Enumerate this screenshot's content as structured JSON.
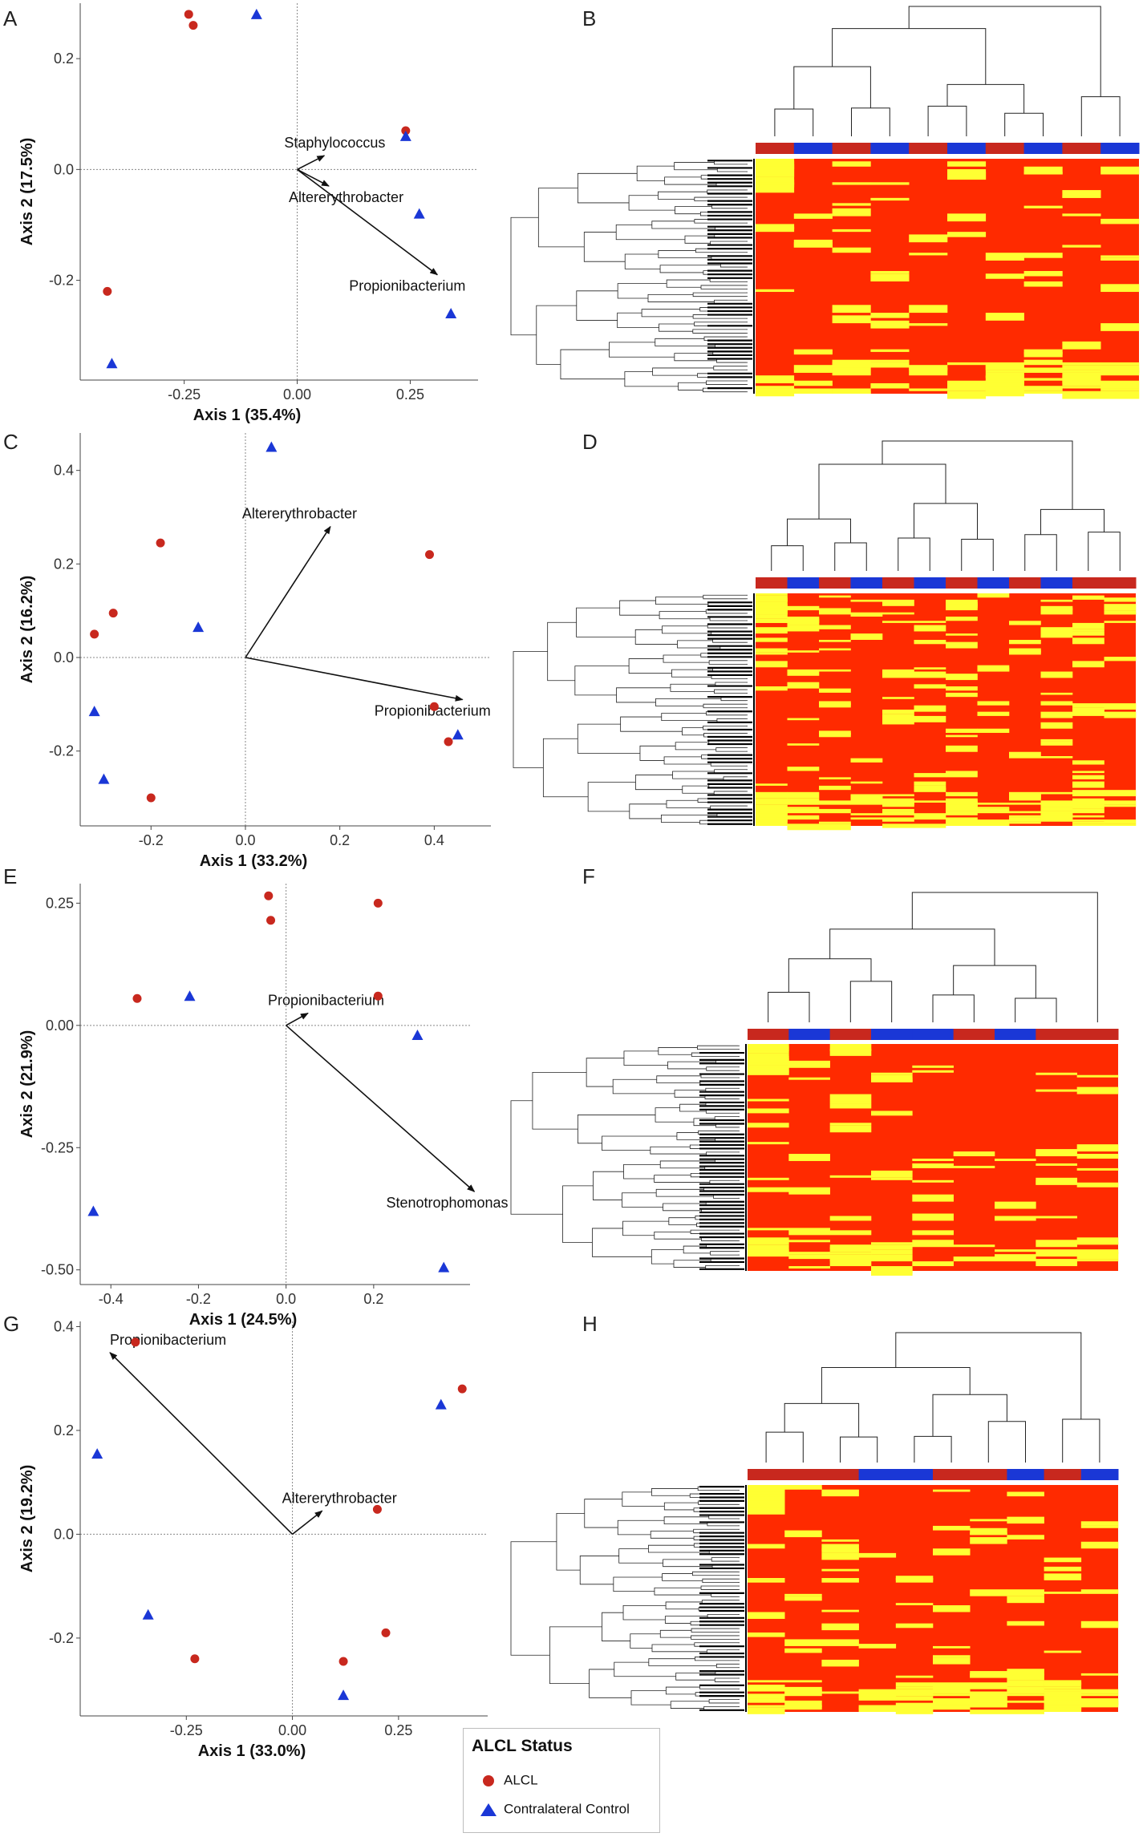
{
  "colors": {
    "alcl": "#c8281e",
    "control": "#1a37d6",
    "heat_low": "#ff2a00",
    "heat_high": "#ffff33",
    "axis_text": "#333333"
  },
  "legend": {
    "title": "ALCL Status",
    "items": [
      {
        "label": "ALCL",
        "marker": "circle"
      },
      {
        "label": "Contralateral Control",
        "marker": "triangle"
      }
    ]
  },
  "chart_data": [
    {
      "panel": "A",
      "type": "scatter",
      "xlabel": "Axis 1 (35.4%)",
      "ylabel": "Axis 2 (17.5%)",
      "xlim": [
        -0.48,
        0.4
      ],
      "ylim": [
        -0.38,
        0.3
      ],
      "xticks": [
        -0.25,
        0,
        0.25
      ],
      "xtick_labels": [
        "-0.25",
        "0.00",
        "0.25"
      ],
      "yticks": [
        -0.2,
        0,
        0.2
      ],
      "ytick_labels": [
        "-0.2",
        "0.0",
        "0.2"
      ],
      "series": [
        {
          "name": "ALCL",
          "points": [
            [
              -0.24,
              0.28
            ],
            [
              -0.23,
              0.26
            ],
            [
              0.24,
              0.07
            ],
            [
              -0.42,
              -0.22
            ]
          ]
        },
        {
          "name": "Contralateral Control",
          "points": [
            [
              -0.09,
              0.28
            ],
            [
              0.24,
              0.06
            ],
            [
              0.27,
              -0.08
            ],
            [
              0.34,
              -0.26
            ],
            [
              -0.41,
              -0.35
            ]
          ]
        }
      ],
      "vectors": [
        {
          "label": "Staphylococcus",
          "x": 0.06,
          "y": 0.025
        },
        {
          "label": "Altererythrobacter",
          "x": 0.07,
          "y": -0.03
        },
        {
          "label": "Propionibacterium",
          "x": 0.31,
          "y": -0.19
        }
      ]
    },
    {
      "panel": "C",
      "type": "scatter",
      "xlabel": "Axis 1 (33.2%)",
      "ylabel": "Axis 2 (16.2%)",
      "xlim": [
        -0.35,
        0.52
      ],
      "ylim": [
        -0.36,
        0.48
      ],
      "xticks": [
        -0.2,
        0,
        0.2,
        0.4
      ],
      "xtick_labels": [
        "-0.2",
        "0.0",
        "0.2",
        "0.4"
      ],
      "yticks": [
        -0.2,
        0,
        0.2,
        0.4
      ],
      "ytick_labels": [
        "-0.2",
        "0.0",
        "0.2",
        "0.4"
      ],
      "series": [
        {
          "name": "ALCL",
          "points": [
            [
              -0.18,
              0.245
            ],
            [
              -0.28,
              0.095
            ],
            [
              -0.32,
              0.05
            ],
            [
              0.39,
              0.22
            ],
            [
              0.4,
              -0.105
            ],
            [
              0.43,
              -0.18
            ],
            [
              -0.2,
              -0.3
            ]
          ]
        },
        {
          "name": "Contralateral Control",
          "points": [
            [
              0.055,
              0.45
            ],
            [
              -0.1,
              0.065
            ],
            [
              -0.32,
              -0.115
            ],
            [
              -0.3,
              -0.26
            ],
            [
              0.45,
              -0.165
            ]
          ]
        }
      ],
      "vectors": [
        {
          "label": "Altererythrobacter",
          "x": 0.18,
          "y": 0.28
        },
        {
          "label": "Propionibacterium",
          "x": 0.46,
          "y": -0.09
        }
      ]
    },
    {
      "panel": "E",
      "type": "scatter",
      "xlabel": "Axis 1 (24.5%)",
      "ylabel": "Axis 2 (21.9%)",
      "xlim": [
        -0.47,
        0.42
      ],
      "ylim": [
        -0.53,
        0.29
      ],
      "xticks": [
        -0.4,
        -0.2,
        0,
        0.2
      ],
      "xtick_labels": [
        "-0.4",
        "-0.2",
        "0.0",
        "0.2"
      ],
      "yticks": [
        -0.5,
        -0.25,
        0,
        0.25
      ],
      "ytick_labels": [
        "-0.50",
        "-0.25",
        "0.00",
        "0.25"
      ],
      "series": [
        {
          "name": "ALCL",
          "points": [
            [
              -0.04,
              0.265
            ],
            [
              -0.035,
              0.215
            ],
            [
              0.21,
              0.25
            ],
            [
              0.21,
              0.06
            ],
            [
              -0.34,
              0.055
            ]
          ]
        },
        {
          "name": "Contralateral Control",
          "points": [
            [
              -0.22,
              0.06
            ],
            [
              0.3,
              -0.02
            ],
            [
              -0.44,
              -0.38
            ],
            [
              0.36,
              -0.495
            ]
          ]
        }
      ],
      "vectors": [
        {
          "label": "Propionibacterium",
          "x": 0.05,
          "y": 0.025
        },
        {
          "label": "Stenotrophomonas",
          "x": 0.43,
          "y": -0.34
        }
      ]
    },
    {
      "panel": "G",
      "type": "scatter",
      "xlabel": "Axis 1 (33.0%)",
      "ylabel": "Axis 2 (19.2%)",
      "xlim": [
        -0.5,
        0.46
      ],
      "ylim": [
        -0.35,
        0.41
      ],
      "xticks": [
        -0.25,
        0,
        0.25
      ],
      "xtick_labels": [
        "-0.25",
        "0.00",
        "0.25"
      ],
      "yticks": [
        -0.2,
        0,
        0.2,
        0.4
      ],
      "ytick_labels": [
        "-0.2",
        "0.0",
        "0.2",
        "0.4"
      ],
      "series": [
        {
          "name": "ALCL",
          "points": [
            [
              -0.37,
              0.37
            ],
            [
              0.4,
              0.28
            ],
            [
              0.2,
              0.048
            ],
            [
              0.22,
              -0.19
            ],
            [
              0.12,
              -0.245
            ],
            [
              -0.23,
              -0.24
            ]
          ]
        },
        {
          "name": "Contralateral Control",
          "points": [
            [
              -0.46,
              0.155
            ],
            [
              0.35,
              0.25
            ],
            [
              -0.34,
              -0.155
            ],
            [
              0.12,
              -0.31
            ]
          ]
        }
      ],
      "vectors": [
        {
          "label": "Propionibacterium",
          "x": -0.43,
          "y": 0.35
        },
        {
          "label": "Altererythrobacter",
          "x": 0.07,
          "y": 0.045
        }
      ]
    },
    {
      "panel": "B",
      "type": "heatmap",
      "column_groups": [
        "ALCL",
        "Contralateral Control",
        "ALCL",
        "Contralateral Control",
        "ALCL",
        "Contralateral Control",
        "ALCL",
        "Contralateral Control",
        "ALCL",
        "Contralateral Control"
      ],
      "rows": 90,
      "seed": 11
    },
    {
      "panel": "D",
      "type": "heatmap",
      "column_groups": [
        "ALCL",
        "Contralateral Control",
        "ALCL",
        "Contralateral Control",
        "ALCL",
        "Contralateral Control",
        "ALCL",
        "Contralateral Control",
        "ALCL",
        "Contralateral Control",
        "ALCL",
        "ALCL"
      ],
      "rows": 110,
      "seed": 23
    },
    {
      "panel": "F",
      "type": "heatmap",
      "column_groups": [
        "ALCL",
        "Contralateral Control",
        "ALCL",
        "Contralateral Control",
        "Contralateral Control",
        "ALCL",
        "Contralateral Control",
        "ALCL",
        "ALCL"
      ],
      "rows": 95,
      "seed": 37
    },
    {
      "panel": "H",
      "type": "heatmap",
      "column_groups": [
        "ALCL",
        "ALCL",
        "ALCL",
        "Contralateral Control",
        "Contralateral Control",
        "ALCL",
        "ALCL",
        "Contralateral Control",
        "ALCL",
        "Contralateral Control"
      ],
      "rows": 100,
      "seed": 53
    }
  ]
}
